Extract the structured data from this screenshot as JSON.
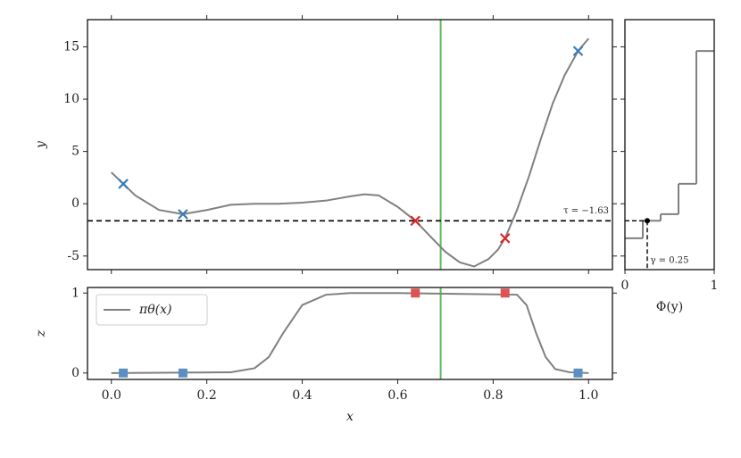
{
  "chart_data": [
    {
      "type": "line",
      "ylabel": "y",
      "xlim": [
        -0.05,
        1.05
      ],
      "ylim": [
        -6.3,
        17.6
      ],
      "yticks": [
        -5,
        0,
        5,
        10,
        15
      ],
      "threshold": {
        "value": -1.63,
        "label": "τ = −1.63"
      },
      "vline": 0.69,
      "vline_color": "#5cb85c",
      "series": [
        {
          "color": "#808080",
          "marker": "none",
          "x": [
            0,
            0.025,
            0.05,
            0.1,
            0.15,
            0.2,
            0.25,
            0.3,
            0.35,
            0.4,
            0.45,
            0.5,
            0.53,
            0.56,
            0.6,
            0.637,
            0.67,
            0.7,
            0.73,
            0.76,
            0.79,
            0.81,
            0.825,
            0.85,
            0.875,
            0.9,
            0.925,
            0.95,
            0.978,
            1.0
          ],
          "values": [
            3,
            1.9,
            0.8,
            -0.6,
            -1.0,
            -0.6,
            -0.1,
            0,
            0,
            0.1,
            0.3,
            0.7,
            0.9,
            0.8,
            -0.3,
            -1.63,
            -3.2,
            -4.6,
            -5.6,
            -6,
            -5.3,
            -4.4,
            -3.3,
            -0.6,
            2.6,
            6.2,
            9.6,
            12.3,
            14.6,
            15.8
          ]
        },
        {
          "color": "#3a7ab8",
          "marker": "x",
          "x": [
            0.025,
            0.15,
            0.978
          ],
          "values": [
            1.9,
            -1.0,
            14.6
          ]
        },
        {
          "color": "#d62728",
          "marker": "x",
          "x": [
            0.637,
            0.825
          ],
          "values": [
            -1.63,
            -3.3
          ]
        }
      ]
    },
    {
      "type": "line",
      "ylabel": "z",
      "xlabel": "x",
      "xlim": [
        -0.05,
        1.05
      ],
      "ylim": [
        -0.08,
        1.07
      ],
      "yticks": [
        0,
        1
      ],
      "xticks": [
        {
          "value": 0,
          "label": "0.0"
        },
        0.2,
        0.4,
        0.6,
        0.8,
        {
          "value": 1,
          "label": "1.0"
        }
      ],
      "series": [
        {
          "name": "πθ(x)",
          "color": "#808080",
          "marker": "none",
          "x": [
            0,
            0.25,
            0.3,
            0.33,
            0.36,
            0.4,
            0.45,
            0.5,
            0.6,
            0.85,
            0.87,
            0.89,
            0.91,
            0.93,
            0.96,
            1.0
          ],
          "values": [
            0,
            0.01,
            0.06,
            0.2,
            0.5,
            0.85,
            0.98,
            1,
            1,
            0.98,
            0.85,
            0.5,
            0.2,
            0.05,
            0.01,
            0
          ]
        },
        {
          "color": "#5b8fc4",
          "marker": "square",
          "x": [
            0.025,
            0.15,
            0.978
          ],
          "values": [
            0,
            0,
            0
          ]
        },
        {
          "color": "#e05252",
          "marker": "square",
          "x": [
            0.637,
            0.825
          ],
          "values": [
            1,
            1
          ]
        }
      ]
    },
    {
      "type": "step",
      "xlabel": "Φ(y)",
      "xlim": [
        0,
        1
      ],
      "xticks": [
        0,
        1
      ],
      "ylim": [
        -6.3,
        17.6
      ],
      "yticks": [
        -5,
        0,
        5,
        10,
        15
      ],
      "color": "#808080",
      "x": [
        0.2,
        0.4,
        0.6,
        0.8,
        1.0
      ],
      "values": [
        -3.3,
        -1.63,
        -1.0,
        1.9,
        14.6
      ],
      "gamma": {
        "value": 0.25,
        "label": "γ = 0.25"
      }
    }
  ]
}
